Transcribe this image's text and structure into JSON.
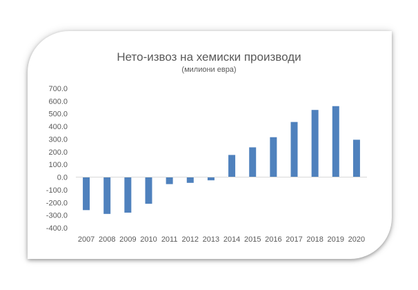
{
  "chart_data": {
    "type": "bar",
    "title": "Нето-извоз на хемиски производи",
    "subtitle": "(милиони евра)",
    "categories": [
      "2007",
      "2008",
      "2009",
      "2010",
      "2011",
      "2012",
      "2013",
      "2014",
      "2015",
      "2016",
      "2017",
      "2018",
      "2019",
      "2020"
    ],
    "values": [
      -260,
      -290,
      -280,
      -210,
      -55,
      -45,
      -25,
      175,
      235,
      315,
      435,
      530,
      560,
      295
    ],
    "ylim": [
      -400,
      700
    ],
    "yticks": [
      "700.0",
      "600.0",
      "500.0",
      "400.0",
      "300.0",
      "200.0",
      "100.0",
      "0.0",
      "-100.0",
      "-200.0",
      "-300.0",
      "-400.0"
    ],
    "bar_color": "#4f81bd",
    "grid": false,
    "legend": "none"
  }
}
